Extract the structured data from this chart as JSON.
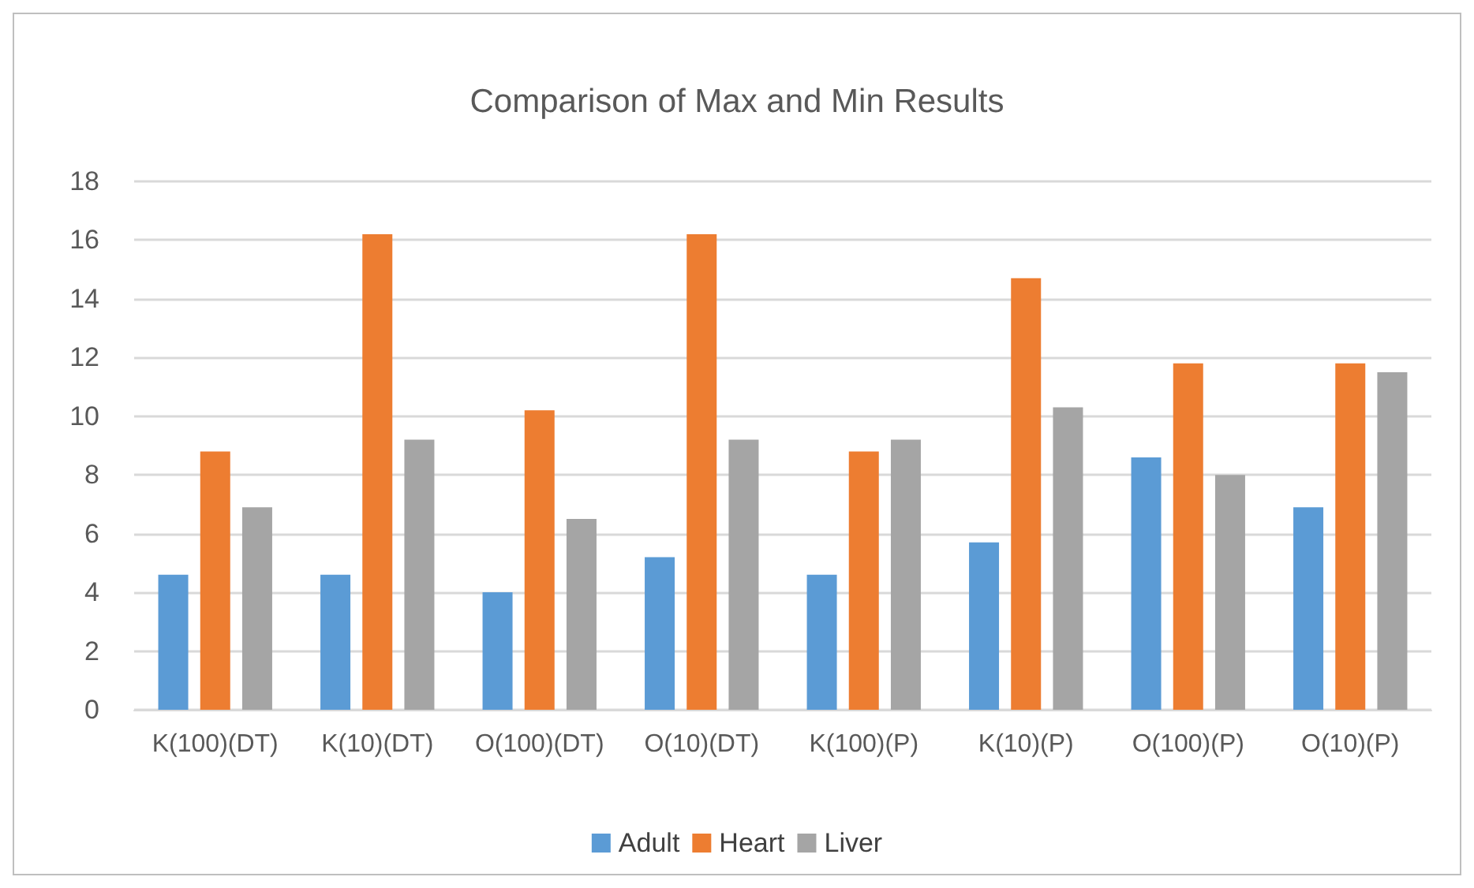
{
  "chart_data": {
    "type": "bar",
    "title": "Comparison of Max and Min Results",
    "categories": [
      "K(100)(DT)",
      "K(10)(DT)",
      "O(100)(DT)",
      "O(10)(DT)",
      "K(100)(P)",
      "K(10)(P)",
      "O(100)(P)",
      "O(10)(P)"
    ],
    "series": [
      {
        "name": "Adult",
        "color": "#5b9bd5",
        "values": [
          4.6,
          4.6,
          4.0,
          5.2,
          4.6,
          5.7,
          8.6,
          6.9
        ]
      },
      {
        "name": "Heart",
        "color": "#ed7d31",
        "values": [
          8.8,
          16.2,
          10.2,
          16.2,
          8.8,
          14.7,
          11.8,
          11.8
        ]
      },
      {
        "name": "Liver",
        "color": "#a5a5a5",
        "values": [
          6.9,
          9.2,
          6.5,
          9.2,
          9.2,
          10.3,
          8.0,
          11.5
        ]
      }
    ],
    "ylim": [
      0,
      18
    ],
    "yticks": [
      0,
      2,
      4,
      6,
      8,
      10,
      12,
      14,
      16,
      18
    ],
    "grid": "y",
    "legend": "bottom"
  }
}
